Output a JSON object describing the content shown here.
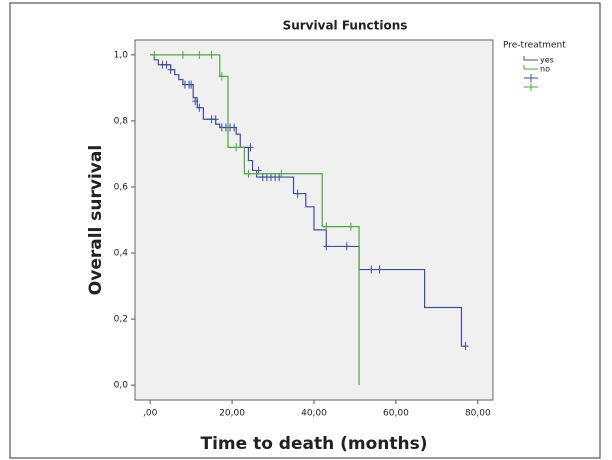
{
  "chart_data": {
    "type": "kaplan-meier",
    "title": "Survival Functions",
    "x_label": "Time to death (months)",
    "y_label": "Overall survival",
    "legend_title": "Pre-treatment",
    "xlim": [
      -3.7,
      83.7
    ],
    "ylim": [
      -0.045,
      1.045
    ],
    "xticks": [
      {
        "value": 0,
        "label": ",00"
      },
      {
        "value": 20,
        "label": "20,00"
      },
      {
        "value": 40,
        "label": "40,00"
      },
      {
        "value": 60,
        "label": "60,00"
      },
      {
        "value": 80,
        "label": "80,00"
      }
    ],
    "yticks": [
      {
        "value": 0,
        "label": "0,0"
      },
      {
        "value": 0.2,
        "label": "0,2"
      },
      {
        "value": 0.4,
        "label": "0,4"
      },
      {
        "value": 0.6,
        "label": "0,6"
      },
      {
        "value": 0.8,
        "label": "0,8"
      },
      {
        "value": 1.0,
        "label": "1,0"
      }
    ],
    "series": [
      {
        "name": "yes",
        "color": "#3d4fa0",
        "x": [
          0,
          1,
          2,
          5,
          6,
          7,
          8,
          10.5,
          11.5,
          13,
          16,
          17,
          21,
          22,
          24,
          25,
          26,
          35,
          38,
          40,
          43,
          51,
          67,
          76,
          77
        ],
        "values": [
          1.0,
          0.985,
          0.97,
          0.955,
          0.94,
          0.925,
          0.91,
          0.87,
          0.84,
          0.805,
          0.79,
          0.78,
          0.76,
          0.72,
          0.68,
          0.65,
          0.63,
          0.58,
          0.54,
          0.47,
          0.42,
          0.35,
          0.235,
          0.118,
          0.118
        ],
        "censored": {
          "x": [
            3,
            4,
            5,
            8.5,
            9.5,
            10,
            11,
            12,
            15,
            16,
            17.5,
            18.5,
            19.5,
            20.5,
            24.5,
            26.5,
            27.5,
            28.5,
            29.5,
            30.5,
            31.5,
            36,
            43,
            48,
            54,
            56,
            77
          ],
          "values": [
            0.97,
            0.97,
            0.955,
            0.91,
            0.91,
            0.91,
            0.86,
            0.84,
            0.805,
            0.805,
            0.78,
            0.78,
            0.78,
            0.78,
            0.72,
            0.65,
            0.63,
            0.63,
            0.63,
            0.63,
            0.63,
            0.58,
            0.42,
            0.42,
            0.35,
            0.35,
            0.118
          ]
        }
      },
      {
        "name": "no",
        "color": "#4caa3c",
        "x": [
          0,
          17,
          19,
          23,
          42,
          51
        ],
        "values": [
          1.0,
          0.935,
          0.72,
          0.64,
          0.48,
          0.0
        ],
        "censored": {
          "x": [
            1,
            8,
            12,
            15,
            17.5,
            21,
            24,
            32,
            43,
            49
          ],
          "values": [
            1.0,
            1.0,
            1.0,
            1.0,
            0.935,
            0.72,
            0.64,
            0.64,
            0.48,
            0.48
          ]
        }
      }
    ]
  }
}
